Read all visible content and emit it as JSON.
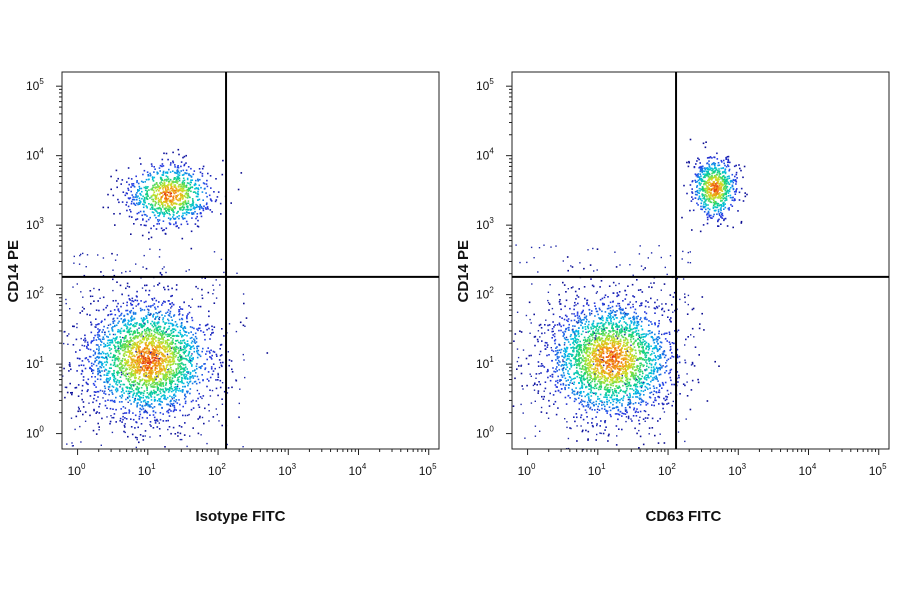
{
  "chart_data": [
    {
      "type": "scatter",
      "xlabel": "Isotype FITC",
      "ylabel": "CD14 PE",
      "xscale": "log",
      "yscale": "log",
      "xlim": [
        0.6,
        140000
      ],
      "ylim": [
        0.6,
        160000
      ],
      "x_ticks": [
        {
          "base": "10",
          "exp": "0"
        },
        {
          "base": "10",
          "exp": "1"
        },
        {
          "base": "10",
          "exp": "2"
        },
        {
          "base": "10",
          "exp": "3"
        },
        {
          "base": "10",
          "exp": "4"
        },
        {
          "base": "10",
          "exp": "5"
        }
      ],
      "y_ticks": [
        {
          "base": "10",
          "exp": "0"
        },
        {
          "base": "10",
          "exp": "1"
        },
        {
          "base": "10",
          "exp": "2"
        },
        {
          "base": "10",
          "exp": "3"
        },
        {
          "base": "10",
          "exp": "4"
        },
        {
          "base": "10",
          "exp": "5"
        }
      ],
      "gate": {
        "x": 130,
        "y": 180
      },
      "grid": false,
      "colormap": "density (blue-cyan-green-yellow-red)",
      "populations": [
        {
          "center": [
            10,
            12
          ],
          "spread": [
            0.45,
            0.42
          ],
          "count": 2600
        },
        {
          "center": [
            20,
            2800
          ],
          "spread": [
            0.3,
            0.22
          ],
          "count": 900
        }
      ]
    },
    {
      "type": "scatter",
      "xlabel": "CD63 FITC",
      "ylabel": "CD14 PE",
      "xscale": "log",
      "yscale": "log",
      "xlim": [
        0.6,
        140000
      ],
      "ylim": [
        0.6,
        160000
      ],
      "x_ticks": [
        {
          "base": "10",
          "exp": "0"
        },
        {
          "base": "10",
          "exp": "1"
        },
        {
          "base": "10",
          "exp": "2"
        },
        {
          "base": "10",
          "exp": "3"
        },
        {
          "base": "10",
          "exp": "4"
        },
        {
          "base": "10",
          "exp": "5"
        }
      ],
      "y_ticks": [
        {
          "base": "10",
          "exp": "0"
        },
        {
          "base": "10",
          "exp": "1"
        },
        {
          "base": "10",
          "exp": "2"
        },
        {
          "base": "10",
          "exp": "3"
        },
        {
          "base": "10",
          "exp": "4"
        },
        {
          "base": "10",
          "exp": "5"
        }
      ],
      "gate": {
        "x": 130,
        "y": 180
      },
      "grid": false,
      "colormap": "density (blue-cyan-green-yellow-red)",
      "populations": [
        {
          "center": [
            15,
            12
          ],
          "spread": [
            0.45,
            0.42
          ],
          "count": 2600
        },
        {
          "center": [
            450,
            3500
          ],
          "spread": [
            0.16,
            0.22
          ],
          "count": 700
        }
      ]
    }
  ]
}
